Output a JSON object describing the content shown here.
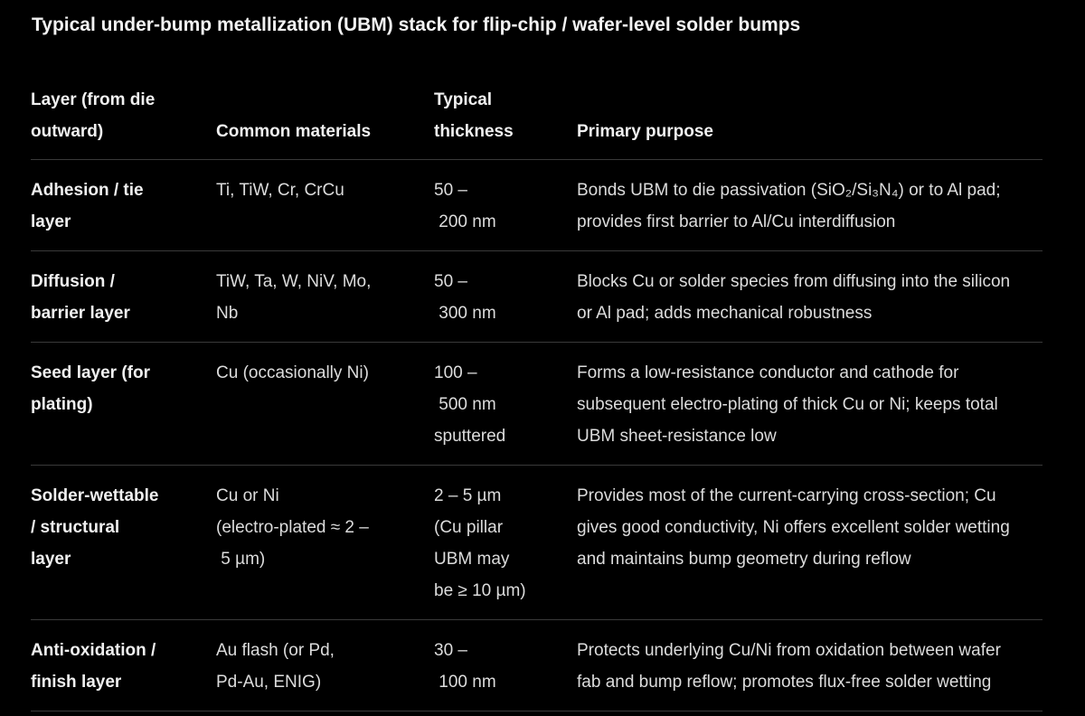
{
  "title": "Typical under-bump metallization (UBM) stack for flip-chip / wafer-level solder bumps",
  "table": {
    "headers": [
      [
        "Layer (from die",
        "outward)"
      ],
      [
        "Common materials"
      ],
      [
        "Typical",
        "thickness"
      ],
      [
        "Primary purpose"
      ]
    ],
    "rows": [
      {
        "layer": [
          "Adhesion / tie",
          "layer"
        ],
        "materials": [
          "Ti, TiW, Cr, CrCu"
        ],
        "thickness": [
          "50 –",
          " 200 nm"
        ],
        "purpose": [
          "Bonds UBM to die passivation (SiO₂/Si₃N₄) or to Al pad;",
          "provides first barrier to Al/Cu interdiffusion"
        ]
      },
      {
        "layer": [
          "Diffusion /",
          "barrier layer"
        ],
        "materials": [
          "TiW, Ta, W, NiV, Mo,",
          "Nb"
        ],
        "thickness": [
          "50 –",
          " 300 nm"
        ],
        "purpose": [
          "Blocks Cu or solder species from diffusing into the silicon",
          "or Al pad; adds mechanical robustness"
        ]
      },
      {
        "layer": [
          "Seed layer (for",
          "plating)"
        ],
        "materials": [
          "Cu (occasionally Ni)"
        ],
        "thickness": [
          "100 –",
          " 500 nm",
          "sputtered"
        ],
        "purpose": [
          "Forms a low-resistance conductor and cathode for",
          "subsequent electro-plating of thick Cu or Ni; keeps total",
          "UBM sheet-resistance low"
        ]
      },
      {
        "layer": [
          "Solder-wettable",
          "/ structural",
          "layer"
        ],
        "materials": [
          "Cu or Ni",
          "(electro-plated ≈ 2 –",
          " 5 µm)"
        ],
        "thickness": [
          "2 – 5 µm",
          "(Cu pillar",
          "UBM may",
          "be ≥ 10 µm)"
        ],
        "purpose": [
          "Provides most of the current-carrying cross-section; Cu",
          "gives good conductivity, Ni offers excellent solder wetting",
          "and maintains bump geometry during reflow"
        ]
      },
      {
        "layer": [
          "Anti-oxidation /",
          "finish layer"
        ],
        "materials": [
          "Au flash (or Pd,",
          "Pd-Au, ENIG)"
        ],
        "thickness": [
          "30 –",
          " 100 nm"
        ],
        "purpose": [
          "Protects underlying Cu/Ni from oxidation between wafer",
          "fab and bump reflow; promotes flux-free solder wetting"
        ]
      }
    ]
  }
}
